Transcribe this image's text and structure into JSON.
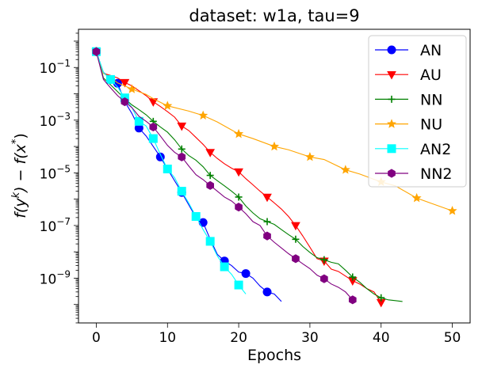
{
  "chart_data": {
    "type": "line",
    "title": "dataset: w1a, tau=9",
    "xlabel": "Epochs",
    "ylabel": "f(y^k) − f(x*)",
    "ylabel_parts": {
      "f1": "f(y",
      "k": "k",
      "mid": ") − f(x",
      "star": "*",
      "end": ")"
    },
    "x_ticks": [
      "0",
      "10",
      "20",
      "30",
      "40",
      "50"
    ],
    "y_ticks": [
      {
        "base": "10",
        "exp": "−1",
        "value": 0.1
      },
      {
        "base": "10",
        "exp": "−3",
        "value": 0.001
      },
      {
        "base": "10",
        "exp": "−5",
        "value": 1e-05
      },
      {
        "base": "10",
        "exp": "−7",
        "value": 1e-07
      },
      {
        "base": "10",
        "exp": "−9",
        "value": 1e-09
      }
    ],
    "xlim": [
      -2.5,
      52.5
    ],
    "ylim_log10": [
      -10.7,
      0.45
    ],
    "y_scale": "log",
    "grid": false,
    "legend_position": "top-right",
    "series": [
      {
        "name": "AN",
        "color": "#0000ff",
        "marker": "circle",
        "x": [
          0,
          1,
          2,
          3,
          4,
          5,
          6,
          7,
          8,
          9,
          10,
          11,
          12,
          13,
          14,
          15,
          16,
          17,
          18,
          19,
          20,
          21,
          22,
          23,
          24,
          25,
          26
        ],
        "y": [
          0.4,
          0.065,
          0.04,
          0.025,
          0.005,
          0.0018,
          0.0005,
          0.00025,
          0.0001,
          4e-05,
          1.4e-05,
          5e-06,
          1.8e-06,
          6e-07,
          2e-07,
          1.3e-07,
          3e-08,
          8e-09,
          4.5e-09,
          3e-09,
          1.7e-09,
          1.5e-09,
          1e-09,
          5e-10,
          3e-10,
          2.5e-10,
          1.3e-10
        ],
        "marker_x": [
          0,
          3,
          6,
          9,
          12,
          15,
          18,
          21,
          24
        ]
      },
      {
        "name": "AU",
        "color": "#ff0000",
        "marker": "triangle-down",
        "x": [
          0,
          1,
          2,
          3,
          4,
          5,
          6,
          7,
          8,
          9,
          10,
          11,
          12,
          13,
          14,
          15,
          16,
          17,
          18,
          19,
          20,
          21,
          22,
          23,
          24,
          25,
          26,
          27,
          28,
          29,
          30,
          31,
          32,
          33,
          34,
          35,
          36,
          37,
          38,
          39,
          40
        ],
        "y": [
          0.4,
          0.06,
          0.05,
          0.04,
          0.027,
          0.02,
          0.013,
          0.0085,
          0.005,
          0.0033,
          0.0021,
          0.0013,
          0.0006,
          0.0004,
          0.00022,
          0.00012,
          6e-05,
          3.5e-05,
          2.2e-05,
          1.5e-05,
          1.1e-05,
          6e-06,
          3.5e-06,
          2e-06,
          1.2e-06,
          7.2e-07,
          4.2e-07,
          2.2e-07,
          1e-07,
          4e-08,
          1.5e-08,
          5.5e-09,
          4.5e-09,
          2.2e-09,
          1.8e-09,
          1.2e-09,
          8e-10,
          6e-10,
          4e-10,
          3e-10,
          1.2e-10
        ],
        "marker_x": [
          0,
          4,
          8,
          12,
          16,
          20,
          24,
          28,
          32,
          36,
          40
        ]
      },
      {
        "name": "NN",
        "color": "#008000",
        "marker": "plus",
        "x": [
          0,
          1,
          2,
          3,
          4,
          5,
          6,
          7,
          8,
          9,
          10,
          11,
          12,
          13,
          14,
          15,
          16,
          17,
          18,
          19,
          20,
          21,
          22,
          23,
          24,
          25,
          26,
          27,
          28,
          29,
          30,
          31,
          32,
          33,
          34,
          35,
          36,
          37,
          38,
          39,
          40,
          41,
          42,
          43
        ],
        "y": [
          0.4,
          0.04,
          0.022,
          0.012,
          0.0065,
          0.0038,
          0.0025,
          0.0016,
          0.0009,
          0.00055,
          0.00035,
          0.00018,
          8e-05,
          4.5e-05,
          3e-05,
          1.7e-05,
          8e-06,
          5e-06,
          3.2e-06,
          2e-06,
          1.2e-06,
          5.5e-07,
          3e-07,
          1.8e-07,
          1.4e-07,
          1.1e-07,
          7e-08,
          4.5e-08,
          3e-08,
          1.6e-08,
          9.5e-09,
          6e-09,
          5e-09,
          4e-09,
          3.5e-09,
          2e-09,
          1.1e-09,
          7e-10,
          4e-10,
          2.5e-10,
          1.8e-10,
          1.5e-10,
          1.4e-10,
          1.3e-10
        ],
        "marker_x": [
          0,
          4,
          8,
          12,
          16,
          20,
          24,
          28,
          32,
          36,
          40
        ]
      },
      {
        "name": "NU",
        "color": "#ffa500",
        "marker": "star",
        "x": [
          0,
          1,
          2,
          3,
          4,
          5,
          7,
          8,
          10,
          13,
          15,
          17,
          20,
          22,
          25,
          27,
          30,
          32,
          35,
          37,
          40,
          42,
          45,
          47,
          50
        ],
        "y": [
          0.4,
          0.06,
          0.042,
          0.026,
          0.02,
          0.015,
          0.0095,
          0.0065,
          0.0035,
          0.0022,
          0.0015,
          0.00085,
          0.0003,
          0.0002,
          0.0001,
          7.5e-05,
          4e-05,
          3.2e-05,
          1.3e-05,
          9e-06,
          4.5e-06,
          3.2e-06,
          1.1e-06,
          7e-07,
          3.6e-07
        ],
        "marker_x": [
          0,
          5,
          10,
          15,
          20,
          25,
          30,
          35,
          40,
          45,
          50
        ]
      },
      {
        "name": "AN2",
        "color": "#00ffff",
        "marker": "square",
        "x": [
          0,
          1,
          2,
          3,
          4,
          5,
          6,
          7,
          8,
          9,
          10,
          11,
          12,
          13,
          14,
          15,
          16,
          17,
          18,
          19,
          20,
          21
        ],
        "y": [
          0.4,
          0.065,
          0.035,
          0.018,
          0.007,
          0.003,
          0.0009,
          0.0006,
          0.0002,
          5e-05,
          1.4e-05,
          6.5e-06,
          2e-06,
          7e-07,
          2.2e-07,
          7e-08,
          2.5e-08,
          7e-09,
          2.7e-09,
          1.4e-09,
          5.5e-10,
          2.5e-10
        ],
        "marker_x": [
          0,
          2,
          4,
          6,
          8,
          10,
          12,
          14,
          16,
          18,
          20
        ]
      },
      {
        "name": "NN2",
        "color": "#800080",
        "marker": "hexagon",
        "x": [
          0,
          1,
          2,
          3,
          4,
          5,
          6,
          7,
          8,
          9,
          10,
          11,
          12,
          13,
          14,
          15,
          16,
          17,
          18,
          19,
          20,
          21,
          22,
          23,
          24,
          25,
          26,
          27,
          28,
          29,
          30,
          31,
          32,
          33,
          34,
          35,
          36
        ],
        "y": [
          0.4,
          0.035,
          0.017,
          0.0085,
          0.005,
          0.003,
          0.0014,
          0.0009,
          0.00055,
          0.00025,
          0.00011,
          6e-05,
          4e-05,
          1.8e-05,
          8.5e-06,
          5.5e-06,
          3.3e-06,
          2e-06,
          1.2e-06,
          8.5e-07,
          5e-07,
          2.8e-07,
          1.4e-07,
          1e-07,
          4e-08,
          2.3e-08,
          1.4e-08,
          8.5e-09,
          5.5e-09,
          3.5e-09,
          2.3e-09,
          1.3e-09,
          9.5e-10,
          6e-10,
          4.5e-10,
          3e-10,
          1.5e-10
        ],
        "marker_x": [
          0,
          4,
          8,
          12,
          16,
          20,
          24,
          28,
          32,
          36
        ]
      }
    ]
  }
}
